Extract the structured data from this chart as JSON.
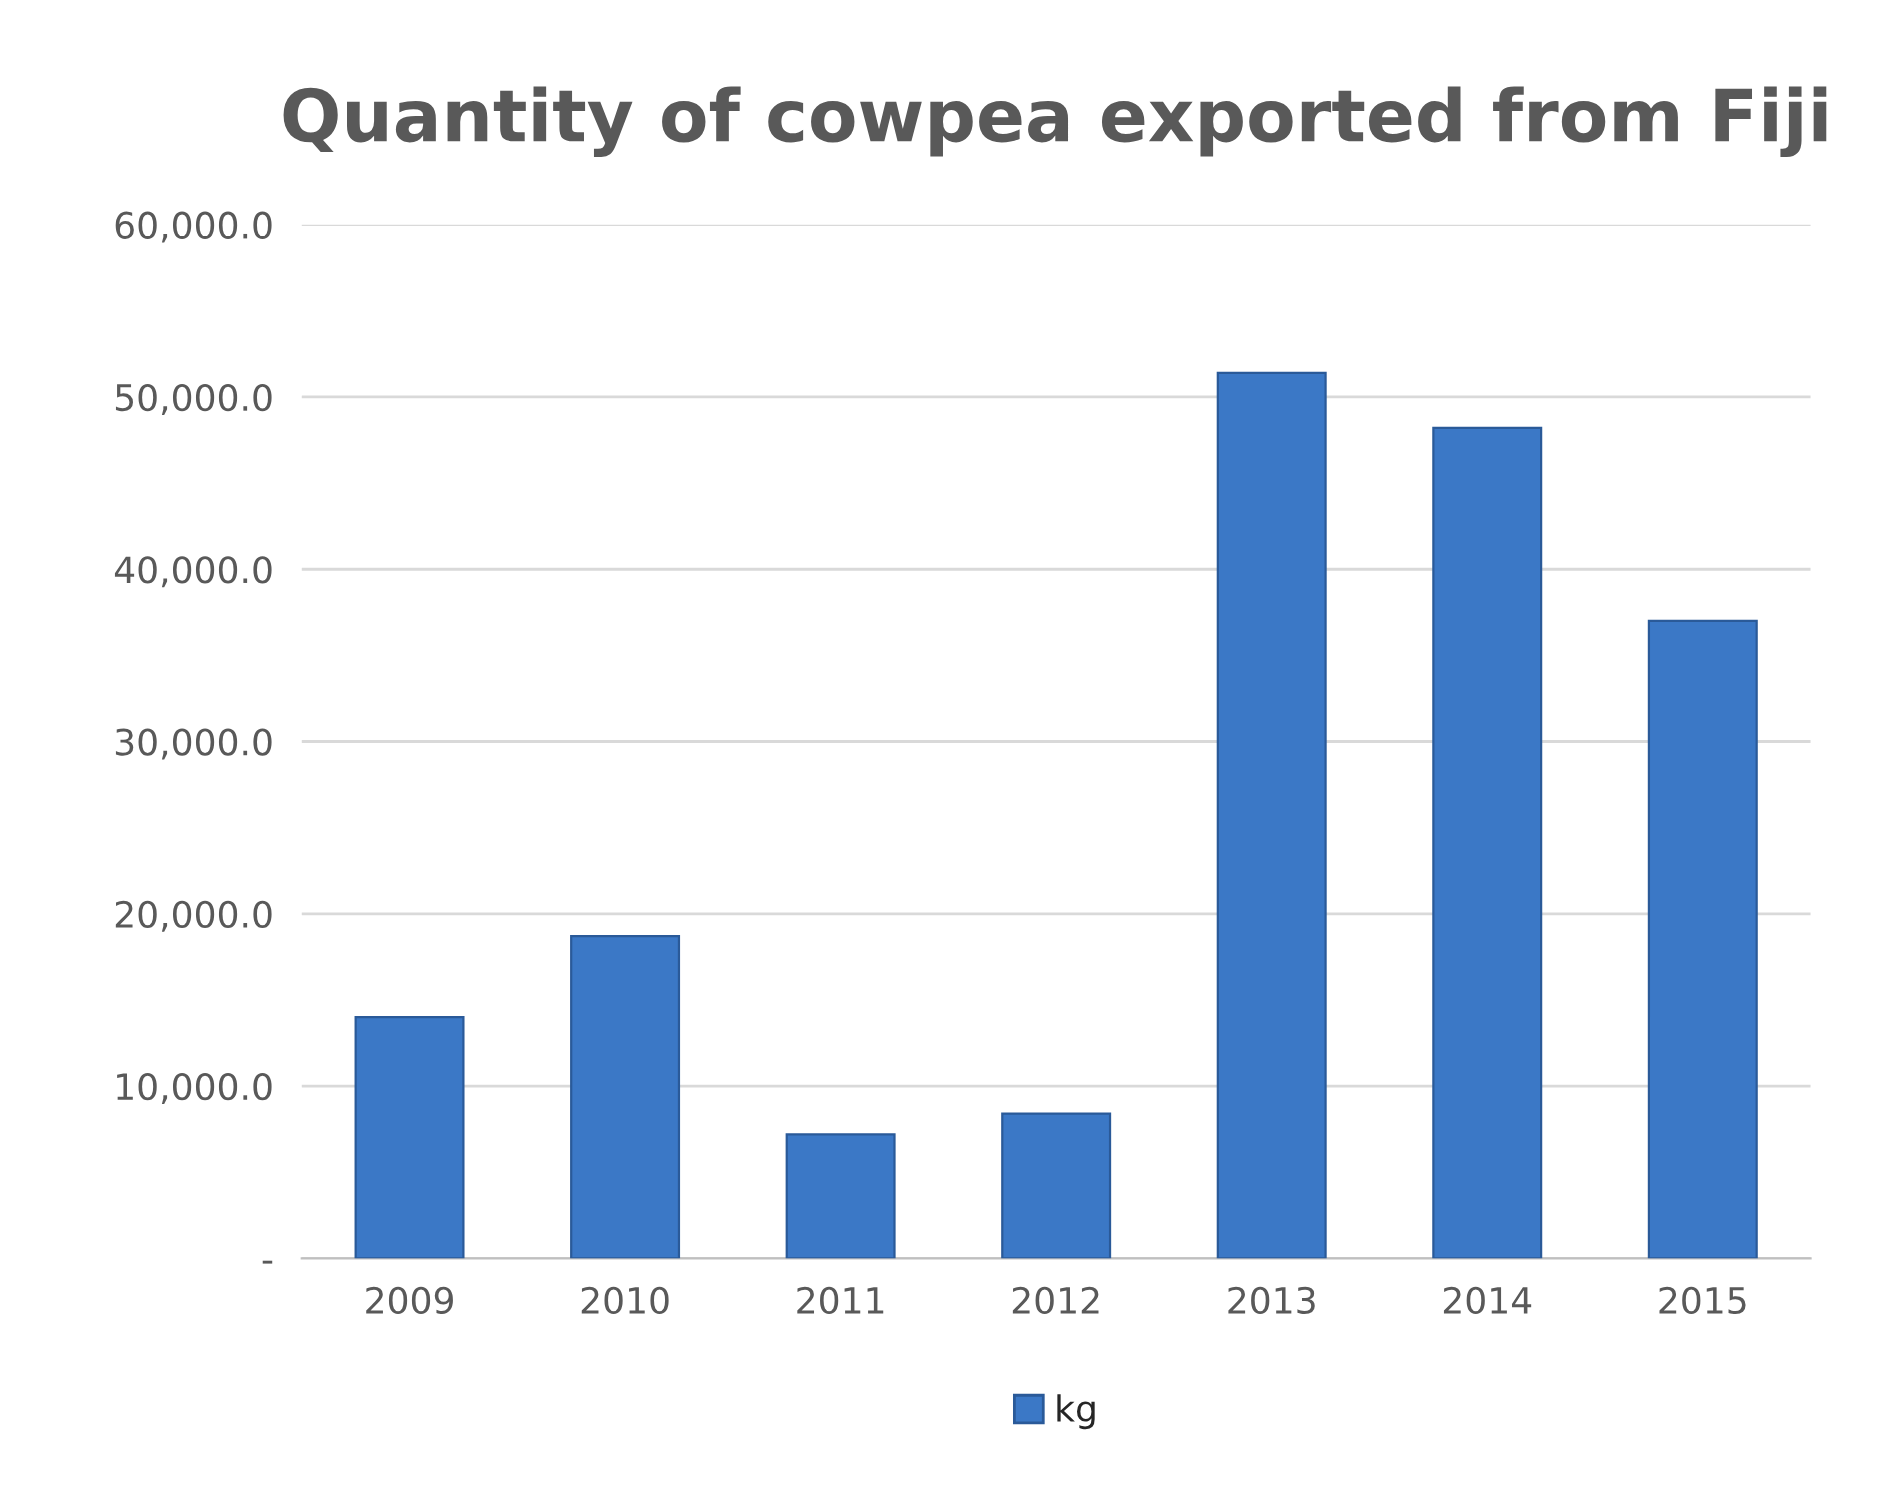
{
  "chart_data": {
    "type": "bar",
    "title": "Quantity of cowpea exported from Fiji",
    "categories": [
      "2009",
      "2010",
      "2011",
      "2012",
      "2013",
      "2014",
      "2015"
    ],
    "series": [
      {
        "name": "kg",
        "color": "#3b78c6",
        "values": [
          14000,
          18700,
          7200,
          8400,
          51400,
          48200,
          37000
        ]
      }
    ],
    "ylim": [
      0,
      60000
    ],
    "yticks": [
      {
        "value": 0,
        "label": "-"
      },
      {
        "value": 10000,
        "label": "10,000.0"
      },
      {
        "value": 20000,
        "label": "20,000.0"
      },
      {
        "value": 30000,
        "label": "30,000.0"
      },
      {
        "value": 40000,
        "label": "40,000.0"
      },
      {
        "value": 50000,
        "label": "50,000.0"
      },
      {
        "value": 60000,
        "label": "60,000.0"
      }
    ],
    "grid": "y",
    "legend": "bottom"
  }
}
